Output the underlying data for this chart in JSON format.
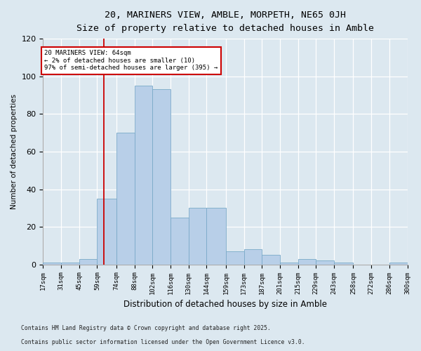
{
  "title1": "20, MARINERS VIEW, AMBLE, MORPETH, NE65 0JH",
  "title2": "Size of property relative to detached houses in Amble",
  "xlabel": "Distribution of detached houses by size in Amble",
  "ylabel": "Number of detached properties",
  "bins": [
    17,
    31,
    45,
    59,
    74,
    88,
    102,
    116,
    130,
    144,
    159,
    173,
    187,
    201,
    215,
    229,
    243,
    258,
    272,
    286,
    300
  ],
  "bin_labels": [
    "17sqm",
    "31sqm",
    "45sqm",
    "59sqm",
    "74sqm",
    "88sqm",
    "102sqm",
    "116sqm",
    "130sqm",
    "144sqm",
    "159sqm",
    "173sqm",
    "187sqm",
    "201sqm",
    "215sqm",
    "229sqm",
    "243sqm",
    "258sqm",
    "272sqm",
    "286sqm",
    "300sqm"
  ],
  "counts": [
    1,
    1,
    3,
    35,
    70,
    95,
    93,
    25,
    30,
    30,
    7,
    8,
    5,
    1,
    3,
    2,
    1,
    0,
    0,
    1
  ],
  "bar_color": "#b8cfe8",
  "bar_edge_color": "#7aaac8",
  "vline_x": 64,
  "vline_color": "#cc0000",
  "ylim": [
    0,
    120
  ],
  "yticks": [
    0,
    20,
    40,
    60,
    80,
    100,
    120
  ],
  "annotation_title": "20 MARINERS VIEW: 64sqm",
  "annotation_line1": "← 2% of detached houses are smaller (10)",
  "annotation_line2": "97% of semi-detached houses are larger (395) →",
  "annotation_box_color": "#ffffff",
  "annotation_box_edge": "#cc0000",
  "fig_bg_color": "#dce8f0",
  "plot_bg_color": "#dce8f0",
  "footnote1": "Contains HM Land Registry data © Crown copyright and database right 2025.",
  "footnote2": "Contains public sector information licensed under the Open Government Licence v3.0."
}
